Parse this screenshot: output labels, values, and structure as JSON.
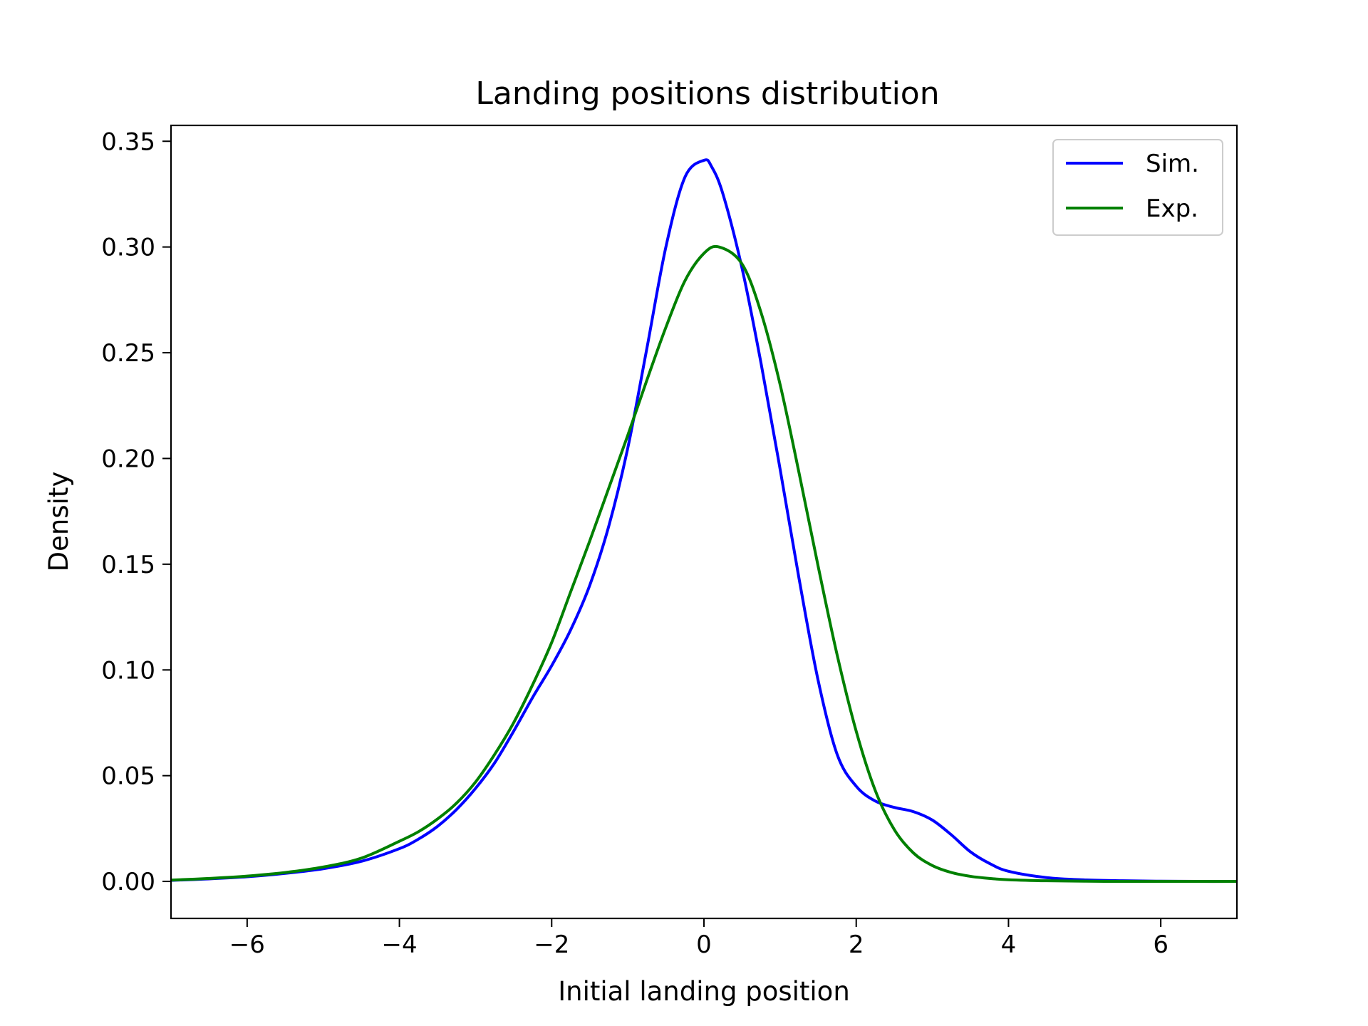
{
  "chart_data": {
    "type": "line",
    "title": "Landing positions distribution",
    "xlabel": "Initial landing position",
    "ylabel": "Density",
    "xlim": [
      -7,
      7
    ],
    "ylim": [
      -0.0175,
      0.3575
    ],
    "xticks": [
      -6,
      -4,
      -2,
      0,
      2,
      4,
      6
    ],
    "xtick_labels": [
      "−6",
      "−4",
      "−2",
      "0",
      "2",
      "4",
      "6"
    ],
    "yticks": [
      0.0,
      0.05,
      0.1,
      0.15,
      0.2,
      0.25,
      0.3,
      0.35
    ],
    "ytick_labels": [
      "0.00",
      "0.05",
      "0.10",
      "0.15",
      "0.20",
      "0.25",
      "0.30",
      "0.35"
    ],
    "grid": false,
    "legend": {
      "position": "top-right",
      "entries": [
        "Sim.",
        "Exp."
      ]
    },
    "series": [
      {
        "name": "Sim.",
        "color": "#0000ff",
        "x": [
          -7,
          -6.5,
          -6,
          -5.5,
          -5,
          -4.5,
          -4,
          -3.75,
          -3.5,
          -3.25,
          -3,
          -2.75,
          -2.5,
          -2.25,
          -2,
          -1.75,
          -1.5,
          -1.25,
          -1,
          -0.75,
          -0.5,
          -0.25,
          0,
          0.1,
          0.25,
          0.5,
          0.75,
          1,
          1.25,
          1.5,
          1.75,
          2,
          2.25,
          2.5,
          2.75,
          3,
          3.25,
          3.5,
          3.75,
          4,
          4.5,
          5,
          5.5,
          6,
          6.5,
          7
        ],
        "y": [
          0.0005,
          0.0012,
          0.0022,
          0.0038,
          0.006,
          0.0095,
          0.0155,
          0.02,
          0.026,
          0.034,
          0.044,
          0.056,
          0.071,
          0.087,
          0.102,
          0.119,
          0.14,
          0.168,
          0.205,
          0.252,
          0.3,
          0.333,
          0.341,
          0.338,
          0.325,
          0.29,
          0.245,
          0.195,
          0.143,
          0.095,
          0.06,
          0.045,
          0.038,
          0.035,
          0.033,
          0.029,
          0.022,
          0.014,
          0.0085,
          0.0048,
          0.0018,
          0.0007,
          0.0003,
          0.0001,
          0.0,
          0.0
        ]
      },
      {
        "name": "Exp.",
        "color": "#008000",
        "x": [
          -7,
          -6.5,
          -6,
          -5.5,
          -5,
          -4.5,
          -4,
          -3.75,
          -3.5,
          -3.25,
          -3,
          -2.75,
          -2.5,
          -2.25,
          -2,
          -1.75,
          -1.5,
          -1.25,
          -1,
          -0.75,
          -0.5,
          -0.25,
          0,
          0.2,
          0.5,
          0.75,
          1,
          1.25,
          1.5,
          1.75,
          2,
          2.25,
          2.5,
          2.75,
          3,
          3.25,
          3.5,
          3.75,
          4,
          4.5,
          5,
          5.5,
          6,
          6.5,
          7
        ],
        "y": [
          0.0006,
          0.0014,
          0.0025,
          0.0042,
          0.0068,
          0.011,
          0.019,
          0.0235,
          0.0295,
          0.037,
          0.047,
          0.06,
          0.075,
          0.093,
          0.113,
          0.137,
          0.161,
          0.186,
          0.211,
          0.237,
          0.262,
          0.284,
          0.297,
          0.3,
          0.292,
          0.269,
          0.235,
          0.193,
          0.149,
          0.107,
          0.071,
          0.043,
          0.0245,
          0.0135,
          0.0075,
          0.0042,
          0.0024,
          0.0014,
          0.0008,
          0.0003,
          0.0001,
          0.0,
          0.0,
          0.0,
          0.0
        ]
      }
    ]
  }
}
